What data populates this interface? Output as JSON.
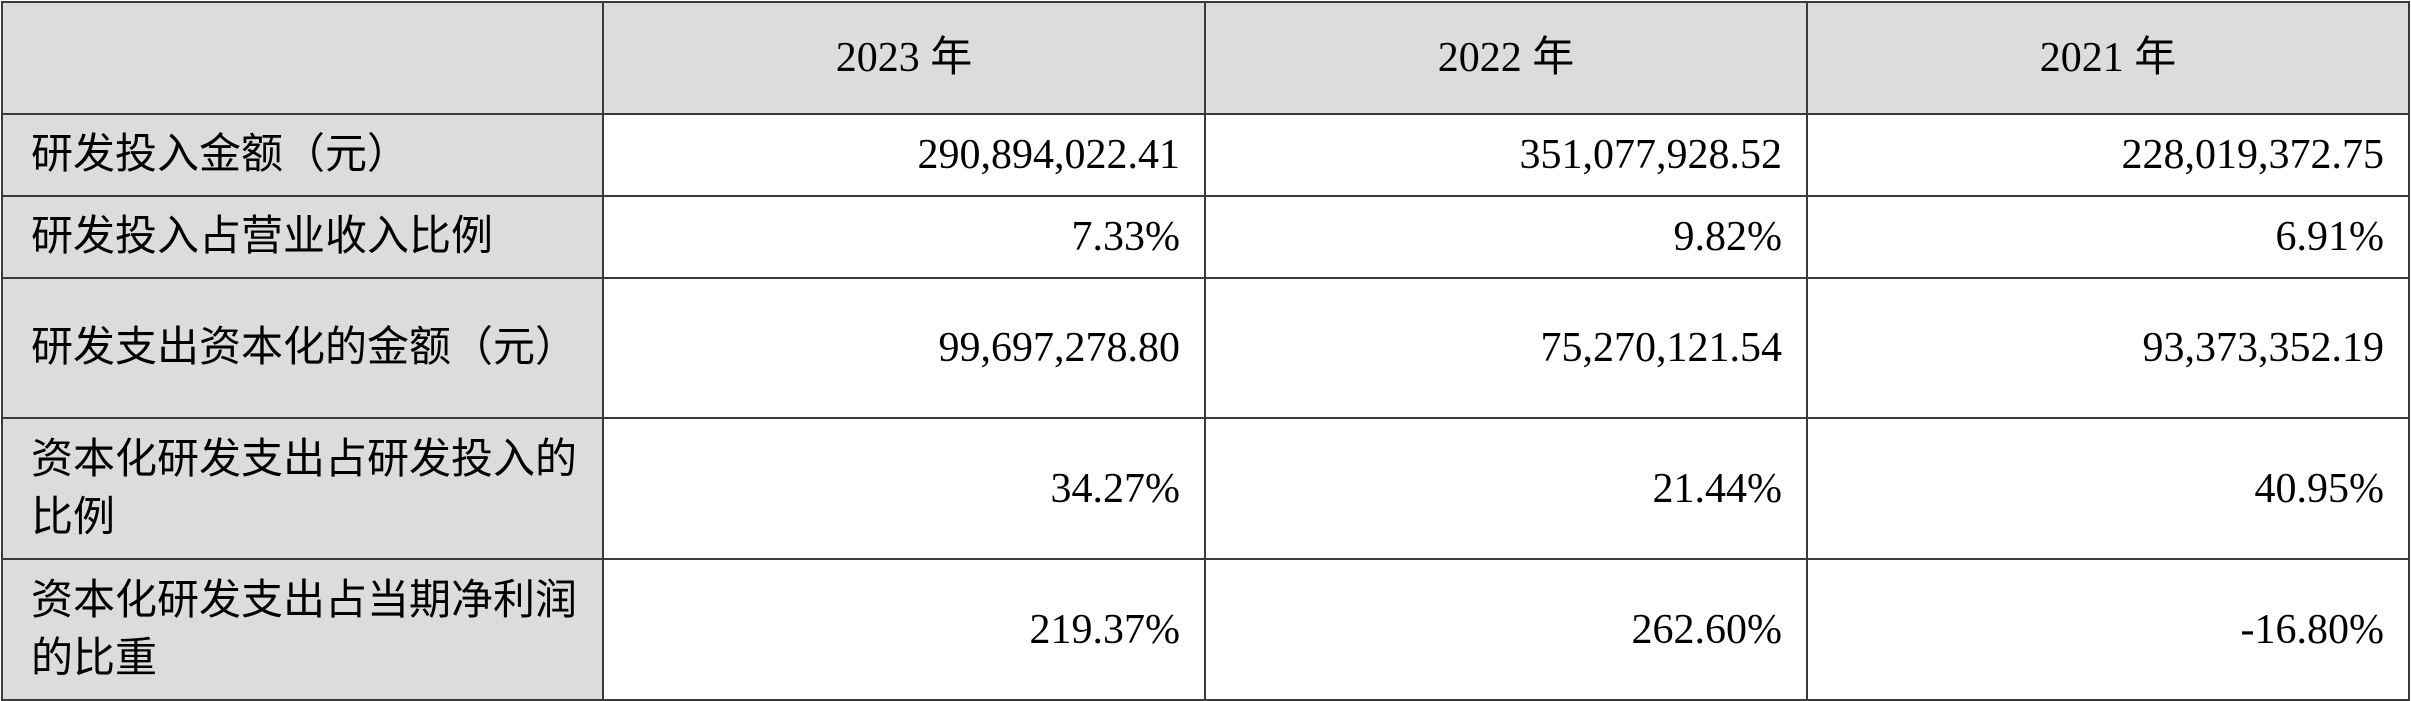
{
  "table": {
    "corner": "",
    "columns": [
      "2023 年",
      "2022 年",
      "2021 年"
    ],
    "rows": [
      {
        "label": "研发投入金额（元）",
        "values": [
          "290,894,022.41",
          "351,077,928.52",
          "228,019,372.75"
        ]
      },
      {
        "label": "研发投入占营业收入比例",
        "values": [
          "7.33%",
          "9.82%",
          "6.91%"
        ]
      },
      {
        "label": "研发支出资本化的金额（元）",
        "values": [
          "99,697,278.80",
          "75,270,121.54",
          "93,373,352.19"
        ]
      },
      {
        "label": "资本化研发支出占研发投入的比例",
        "values": [
          "34.27%",
          "21.44%",
          "40.95%"
        ]
      },
      {
        "label": "资本化研发支出占当期净利润的比重",
        "values": [
          "219.37%",
          "262.60%",
          "-16.80%"
        ]
      }
    ]
  },
  "colors": {
    "label_background": "#dcdcdc",
    "border": "#3a3a3a",
    "text": "#000000"
  }
}
